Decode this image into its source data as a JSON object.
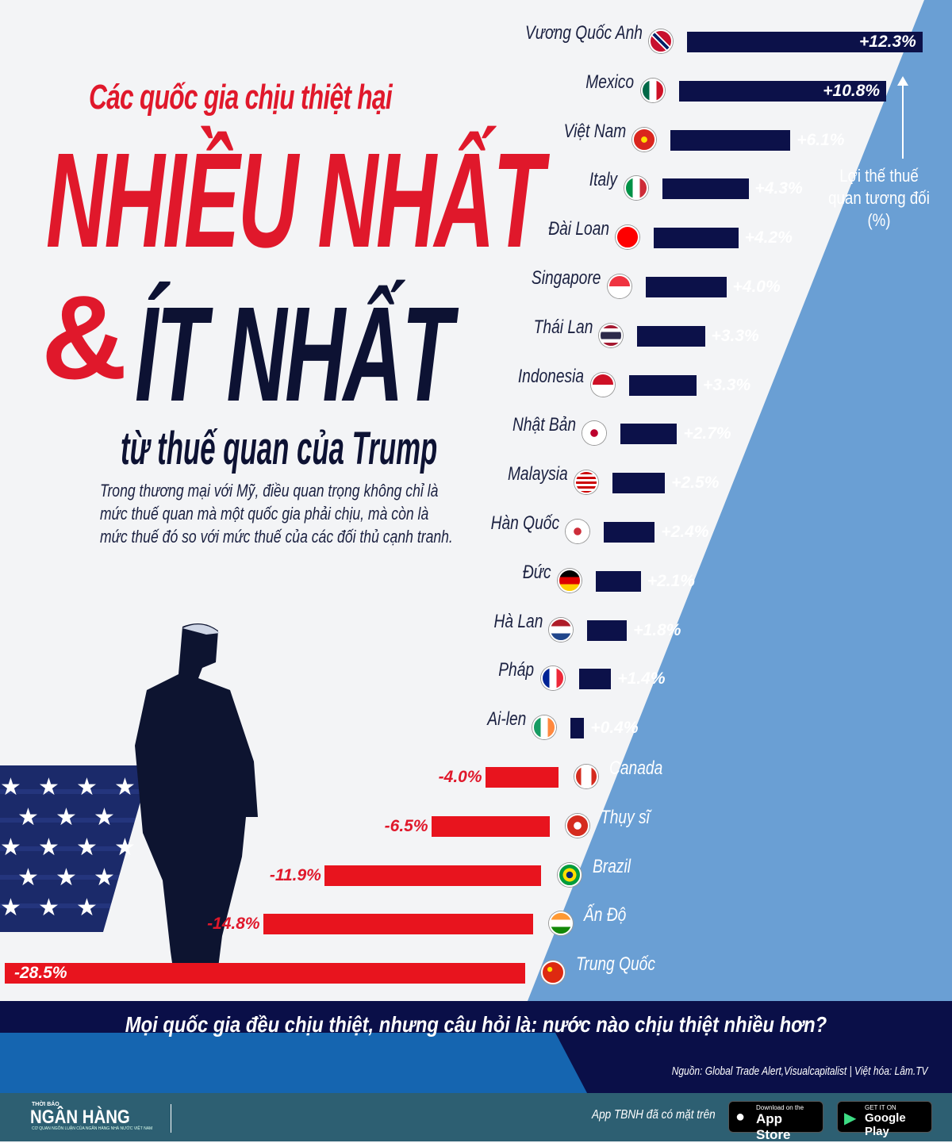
{
  "title": {
    "line1": "Các quốc gia chịu thiệt hại",
    "line2": "NHIỀU NHẤT",
    "amp": "&",
    "line3": "ÍT NHẤT",
    "line4": "từ thuế quan của Trump"
  },
  "description": "Trong thương mại với Mỹ, điều quan trọng không chỉ là mức thuế quan mà một quốc gia phải chịu, mà còn là mức thuế đó so với mức thuế của các đối thủ cạnh tranh.",
  "chart_data": {
    "type": "bar",
    "orientation": "horizontal",
    "ylabel": "Lợi thế thuế quan tương đối (%)",
    "categories": [
      "Vương Quốc Anh",
      "Mexico",
      "Việt Nam",
      "Italy",
      "Đài Loan",
      "Singapore",
      "Thái Lan",
      "Indonesia",
      "Nhật Bản",
      "Malaysia",
      "Hàn Quốc",
      "Đức",
      "Hà Lan",
      "Pháp",
      "Ai-len",
      "Canada",
      "Thụy sĩ",
      "Brazil",
      "Ấn Độ",
      "Trung Quốc"
    ],
    "values": [
      12.3,
      10.8,
      6.1,
      4.3,
      4.2,
      4.0,
      3.3,
      3.3,
      2.7,
      2.5,
      2.4,
      2.1,
      1.8,
      1.4,
      0.4,
      -4.0,
      -6.5,
      -11.9,
      -14.8,
      -28.5
    ],
    "labels": [
      "+12.3%",
      "+10.8%",
      "+6.1%",
      "+4.3%",
      "+4.2%",
      "+4.0%",
      "+3.3%",
      "+3.3%",
      "+2.7%",
      "+2.5%",
      "+2.4%",
      "+2.1%",
      "+1.8%",
      "+1.4%",
      "+0.4%",
      "-4.0%",
      "-6.5%",
      "-11.9%",
      "-14.8%",
      "-28.5%"
    ],
    "colors": {
      "positive": "#0c1149",
      "negative": "#e8141e"
    }
  },
  "flags": [
    "linear-gradient(45deg,#c8102e 40%,#fff 40% 45%,#012169 45% 55%,#fff 55% 60%,#c8102e 60%)",
    "linear-gradient(90deg,#006847 33%,#fff 33% 67%,#ce1126 67%)",
    "radial-gradient(circle,#ffde00 20%,#da251d 22%)",
    "linear-gradient(90deg,#009246 33%,#fff 33% 67%,#ce2b37 67%)",
    "linear-gradient(#fe0000 50%,#fe0000 50%)",
    "linear-gradient(#ef3340 50%,#fff 50%)",
    "linear-gradient(#a51931 16%,#fff 16% 33%,#2d2a4a 33% 67%,#fff 67% 84%,#a51931 84%)",
    "linear-gradient(#ce1126 50%,#fff 50%)",
    "radial-gradient(circle,#bc002d 25%,#fff 27%)",
    "repeating-linear-gradient(#cc0001 0 3px,#fff 3px 6px)",
    "radial-gradient(circle,#cd2e3a 25%,#fff 27%)",
    "linear-gradient(#000 33%,#dd0000 33% 67%,#ffce00 67%)",
    "linear-gradient(#ae1c28 33%,#fff 33% 67%,#21468b 67%)",
    "linear-gradient(90deg,#002395 33%,#fff 33% 67%,#ed2939 67%)",
    "linear-gradient(90deg,#169b62 33%,#fff 33% 67%,#ff883e 67%)",
    "linear-gradient(90deg,#d52b1e 25%,#fff 25% 75%,#d52b1e 75%)",
    "radial-gradient(circle,#fff 25%,#d52b1e 27%)",
    "radial-gradient(circle,#002776 22%,#fedf00 24% 45%,#009c3b 47%)",
    "linear-gradient(#ff9933 33%,#fff 33% 67%,#138808 67%)",
    "radial-gradient(circle at 35% 35%,#ffde00 12%,#de2910 14%)"
  ],
  "question": "Mọi quốc gia đều chịu thiệt, nhưng câu hỏi là: nước nào chịu thiệt nhiều hơn?",
  "source": "Nguồn: Global Trade Alert,Visualcapitalist | Việt hóa: Lâm.TV",
  "footer": {
    "logo_top": "THỜI BÁO",
    "logo": "NGÂN HÀNG",
    "logo_sub": "CƠ QUAN NGÔN LUẬN CỦA NGÂN HÀNG NHÀ NƯỚC VIỆT NAM",
    "app_text": "App TBNH đã có mặt trên",
    "appstore_small": "Download on the",
    "appstore": "App Store",
    "gplay_small": "GET IT ON",
    "gplay": "Google Play"
  }
}
